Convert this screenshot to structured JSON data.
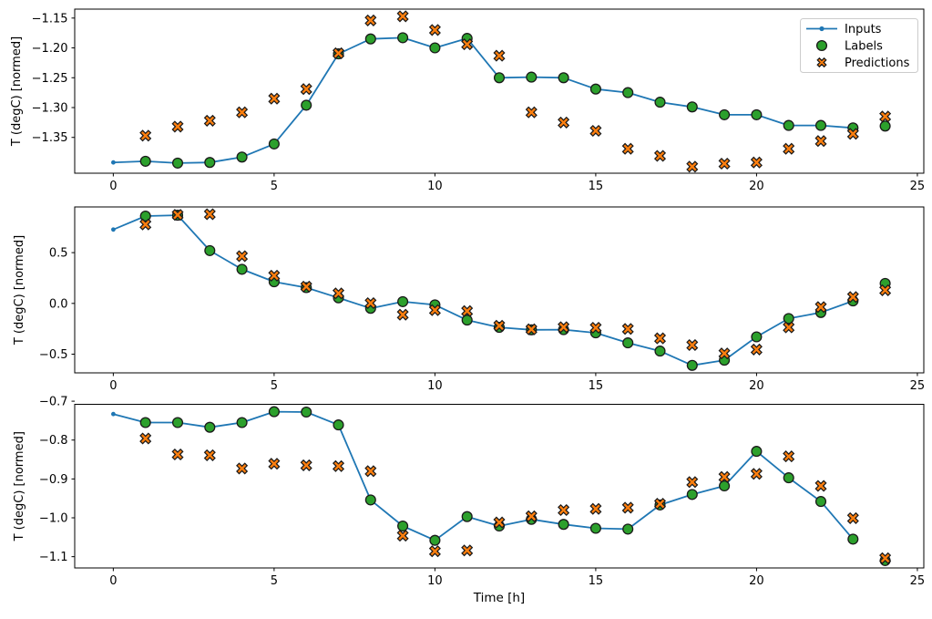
{
  "figure": {
    "background": "#ffffff",
    "xlabel": "Time [h]",
    "ylabel": "T (degC) [normed]",
    "legend": {
      "position": "upper right",
      "entries": [
        {
          "label": "Inputs",
          "marker": "line-with-dot",
          "color": "#1f77b4",
          "edge_color": "#1f77b4"
        },
        {
          "label": "Labels",
          "marker": "circle",
          "color": "#2ca02c",
          "edge_color": "#1a1a1a"
        },
        {
          "label": "Predictions",
          "marker": "x-filled",
          "color": "#ff7f0e",
          "edge_color": "#1a1a1a"
        }
      ]
    }
  },
  "chart_data": [
    {
      "type": "line",
      "title": "",
      "ylabel": "T (degC) [normed]",
      "xlabel": "",
      "grid": false,
      "xlim": [
        -1.2,
        25.2
      ],
      "ylim": [
        -1.41,
        -1.135
      ],
      "xticks": {
        "values": [
          0,
          5,
          10,
          15,
          20,
          25
        ],
        "labels": [
          "0",
          "5",
          "10",
          "15",
          "20",
          "25"
        ]
      },
      "yticks": {
        "values": [
          -1.15,
          -1.2,
          -1.25,
          -1.3,
          -1.35
        ],
        "labels": [
          "−1.15",
          "−1.20",
          "−1.25",
          "−1.30",
          "−1.35"
        ]
      },
      "series": [
        {
          "name": "Inputs",
          "type": "line+dot",
          "color": "#1f77b4",
          "x": [
            0,
            1,
            2,
            3,
            4,
            5,
            6,
            7,
            8,
            9,
            10,
            11,
            12,
            13,
            14,
            15,
            16,
            17,
            18,
            19,
            20,
            21,
            22,
            23
          ],
          "y": [
            -1.392,
            -1.39,
            -1.393,
            -1.392,
            -1.383,
            -1.361,
            -1.296,
            -1.21,
            -1.185,
            -1.183,
            -1.2,
            -1.184,
            -1.25,
            -1.249,
            -1.25,
            -1.269,
            -1.275,
            -1.291,
            -1.299,
            -1.312,
            -1.312,
            -1.33,
            -1.33,
            -1.334
          ]
        },
        {
          "name": "Labels",
          "type": "scatter-circle",
          "color": "#2ca02c",
          "edge_color": "#1a1a1a",
          "x": [
            1,
            2,
            3,
            4,
            5,
            6,
            7,
            8,
            9,
            10,
            11,
            12,
            13,
            14,
            15,
            16,
            17,
            18,
            19,
            20,
            21,
            22,
            23,
            24
          ],
          "y": [
            -1.39,
            -1.393,
            -1.392,
            -1.383,
            -1.361,
            -1.296,
            -1.21,
            -1.185,
            -1.183,
            -1.2,
            -1.184,
            -1.25,
            -1.249,
            -1.25,
            -1.269,
            -1.275,
            -1.291,
            -1.299,
            -1.312,
            -1.312,
            -1.33,
            -1.33,
            -1.334,
            -1.331
          ]
        },
        {
          "name": "Predictions",
          "type": "scatter-x",
          "color": "#ff7f0e",
          "edge_color": "#1a1a1a",
          "x": [
            1,
            2,
            3,
            4,
            5,
            6,
            7,
            8,
            9,
            10,
            11,
            12,
            13,
            14,
            15,
            16,
            17,
            18,
            19,
            20,
            21,
            22,
            23,
            24
          ],
          "y": [
            -1.347,
            -1.332,
            -1.322,
            -1.308,
            -1.285,
            -1.269,
            -1.209,
            -1.154,
            -1.147,
            -1.17,
            -1.194,
            -1.213,
            -1.308,
            -1.325,
            -1.339,
            -1.369,
            -1.381,
            -1.399,
            -1.394,
            -1.392,
            -1.369,
            -1.356,
            -1.344,
            -1.315
          ]
        }
      ]
    },
    {
      "type": "line",
      "title": "",
      "ylabel": "T (degC) [normed]",
      "xlabel": "",
      "grid": false,
      "xlim": [
        -1.2,
        25.2
      ],
      "ylim": [
        -0.684,
        0.95
      ],
      "xticks": {
        "values": [
          0,
          5,
          10,
          15,
          20,
          25
        ],
        "labels": [
          "0",
          "5",
          "10",
          "15",
          "20",
          "25"
        ]
      },
      "yticks": {
        "values": [
          0.5,
          0.0,
          -0.5
        ],
        "labels": [
          "0.5",
          "0.0",
          "−0.5"
        ]
      },
      "series": [
        {
          "name": "Inputs",
          "type": "line+dot",
          "color": "#1f77b4",
          "x": [
            0,
            1,
            2,
            3,
            4,
            5,
            6,
            7,
            8,
            9,
            10,
            11,
            12,
            13,
            14,
            15,
            16,
            17,
            18,
            19,
            20,
            21,
            22,
            23
          ],
          "y": [
            0.727,
            0.86,
            0.868,
            0.52,
            0.336,
            0.213,
            0.155,
            0.055,
            -0.048,
            0.017,
            -0.014,
            -0.164,
            -0.236,
            -0.26,
            -0.258,
            -0.29,
            -0.389,
            -0.469,
            -0.61,
            -0.559,
            -0.329,
            -0.149,
            -0.09,
            0.024
          ]
        },
        {
          "name": "Labels",
          "type": "scatter-circle",
          "color": "#2ca02c",
          "edge_color": "#1a1a1a",
          "x": [
            1,
            2,
            3,
            4,
            5,
            6,
            7,
            8,
            9,
            10,
            11,
            12,
            13,
            14,
            15,
            16,
            17,
            18,
            19,
            20,
            21,
            22,
            23,
            24
          ],
          "y": [
            0.86,
            0.868,
            0.52,
            0.336,
            0.213,
            0.155,
            0.055,
            -0.048,
            0.017,
            -0.014,
            -0.164,
            -0.236,
            -0.26,
            -0.258,
            -0.29,
            -0.389,
            -0.469,
            -0.61,
            -0.559,
            -0.329,
            -0.149,
            -0.09,
            0.024,
            0.197
          ]
        },
        {
          "name": "Predictions",
          "type": "scatter-x",
          "color": "#ff7f0e",
          "edge_color": "#1a1a1a",
          "x": [
            1,
            2,
            3,
            4,
            5,
            6,
            7,
            8,
            9,
            10,
            11,
            12,
            13,
            14,
            15,
            16,
            17,
            18,
            19,
            20,
            21,
            22,
            23,
            24
          ],
          "y": [
            0.778,
            0.872,
            0.878,
            0.465,
            0.273,
            0.165,
            0.099,
            0.003,
            -0.111,
            -0.066,
            -0.075,
            -0.22,
            -0.255,
            -0.234,
            -0.24,
            -0.251,
            -0.344,
            -0.41,
            -0.493,
            -0.454,
            -0.236,
            -0.036,
            0.063,
            0.129
          ]
        }
      ]
    },
    {
      "type": "line",
      "title": "",
      "ylabel": "T (degC) [normed]",
      "xlabel": "Time [h]",
      "grid": false,
      "xlim": [
        -1.2,
        25.2
      ],
      "ylim": [
        -1.129,
        -0.708
      ],
      "xticks": {
        "values": [
          0,
          5,
          10,
          15,
          20,
          25
        ],
        "labels": [
          "0",
          "5",
          "10",
          "15",
          "20",
          "25"
        ]
      },
      "yticks": {
        "values": [
          -0.7,
          -0.8,
          -0.9,
          -1.0,
          -1.1
        ],
        "labels": [
          "−0.7",
          "−0.8",
          "−0.9",
          "−1.0",
          "−1.1"
        ]
      },
      "series": [
        {
          "name": "Inputs",
          "type": "line+dot",
          "color": "#1f77b4",
          "x": [
            0,
            1,
            2,
            3,
            4,
            5,
            6,
            7,
            8,
            9,
            10,
            11,
            12,
            13,
            14,
            15,
            16,
            17,
            18,
            19,
            20,
            21,
            22,
            23
          ],
          "y": [
            -0.733,
            -0.755,
            -0.755,
            -0.767,
            -0.755,
            -0.727,
            -0.728,
            -0.761,
            -0.954,
            -1.021,
            -1.058,
            -0.997,
            -1.021,
            -1.004,
            -1.017,
            -1.027,
            -1.029,
            -0.967,
            -0.94,
            -0.918,
            -0.829,
            -0.897,
            -0.958,
            -1.055
          ]
        },
        {
          "name": "Labels",
          "type": "scatter-circle",
          "color": "#2ca02c",
          "edge_color": "#1a1a1a",
          "x": [
            1,
            2,
            3,
            4,
            5,
            6,
            7,
            8,
            9,
            10,
            11,
            12,
            13,
            14,
            15,
            16,
            17,
            18,
            19,
            20,
            21,
            22,
            23,
            24
          ],
          "y": [
            -0.755,
            -0.755,
            -0.767,
            -0.755,
            -0.727,
            -0.728,
            -0.761,
            -0.954,
            -1.021,
            -1.058,
            -0.997,
            -1.021,
            -1.004,
            -1.017,
            -1.027,
            -1.029,
            -0.967,
            -0.94,
            -0.918,
            -0.829,
            -0.897,
            -0.958,
            -1.055,
            -1.11
          ]
        },
        {
          "name": "Predictions",
          "type": "scatter-x",
          "color": "#ff7f0e",
          "edge_color": "#1a1a1a",
          "x": [
            1,
            2,
            3,
            4,
            5,
            6,
            7,
            8,
            9,
            10,
            11,
            12,
            13,
            14,
            15,
            16,
            17,
            18,
            19,
            20,
            21,
            22,
            23,
            24
          ],
          "y": [
            -0.796,
            -0.837,
            -0.839,
            -0.873,
            -0.861,
            -0.865,
            -0.867,
            -0.88,
            -1.046,
            -1.086,
            -1.084,
            -1.012,
            -0.996,
            -0.98,
            -0.977,
            -0.974,
            -0.964,
            -0.908,
            -0.895,
            -0.887,
            -0.842,
            -0.918,
            -1.001,
            -1.104
          ]
        }
      ]
    }
  ]
}
